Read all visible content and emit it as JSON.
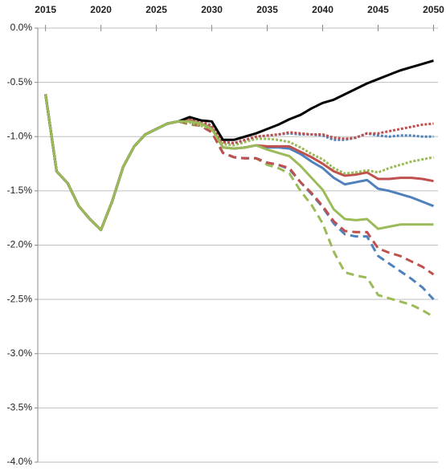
{
  "chart_data": {
    "type": "line",
    "x": [
      2015,
      2016,
      2017,
      2018,
      2019,
      2020,
      2021,
      2022,
      2023,
      2024,
      2025,
      2026,
      2027,
      2028,
      2029,
      2030,
      2031,
      2032,
      2033,
      2034,
      2035,
      2036,
      2037,
      2038,
      2039,
      2040,
      2041,
      2042,
      2043,
      2044,
      2045,
      2046,
      2047,
      2048,
      2049,
      2050
    ],
    "xlim": [
      2014.3,
      2050.4
    ],
    "xticks": [
      2015,
      2020,
      2025,
      2030,
      2035,
      2040,
      2045,
      2050
    ],
    "ylim": [
      -4,
      0
    ],
    "yticks": [
      {
        "value": 0,
        "label": "0.0%"
      },
      {
        "value": -0.5,
        "label": "-0.5%"
      },
      {
        "value": -1,
        "label": "-1.0%"
      },
      {
        "value": -1.5,
        "label": "-1.5%"
      },
      {
        "value": -2,
        "label": "-2.0%"
      },
      {
        "value": -2.5,
        "label": "-2.5%"
      },
      {
        "value": -3,
        "label": "-3.0%"
      },
      {
        "value": -3.5,
        "label": "-3.5%"
      },
      {
        "value": -4,
        "label": "-4.0%"
      }
    ],
    "grid": true,
    "series": [
      {
        "color": "#9bbb59",
        "style": "dashed",
        "values": [
          -0.61,
          -1.32,
          -1.43,
          -1.64,
          -1.76,
          -1.86,
          -1.6,
          -1.28,
          -1.09,
          -0.98,
          -0.93,
          -0.88,
          -0.86,
          -0.89,
          -0.9,
          -0.96,
          -1.15,
          -1.19,
          -1.2,
          -1.2,
          -1.26,
          -1.29,
          -1.34,
          -1.5,
          -1.63,
          -1.8,
          -2.06,
          -2.25,
          -2.28,
          -2.3,
          -2.46,
          -2.49,
          -2.52,
          -2.55,
          -2.6,
          -2.66
        ]
      },
      {
        "color": "#4f81bd",
        "style": "dashed",
        "values": [
          -0.61,
          -1.32,
          -1.43,
          -1.64,
          -1.76,
          -1.86,
          -1.6,
          -1.28,
          -1.09,
          -0.98,
          -0.93,
          -0.88,
          -0.86,
          -0.88,
          -0.9,
          -0.96,
          -1.15,
          -1.19,
          -1.2,
          -1.2,
          -1.24,
          -1.26,
          -1.3,
          -1.42,
          -1.53,
          -1.65,
          -1.8,
          -1.9,
          -1.92,
          -1.92,
          -2.1,
          -2.17,
          -2.24,
          -2.31,
          -2.39,
          -2.5
        ]
      },
      {
        "color": "#c0504d",
        "style": "dashed",
        "values": [
          -0.61,
          -1.32,
          -1.43,
          -1.64,
          -1.76,
          -1.86,
          -1.6,
          -1.28,
          -1.09,
          -0.98,
          -0.93,
          -0.88,
          -0.86,
          -0.88,
          -0.9,
          -0.96,
          -1.15,
          -1.19,
          -1.2,
          -1.2,
          -1.24,
          -1.26,
          -1.29,
          -1.42,
          -1.52,
          -1.64,
          -1.78,
          -1.87,
          -1.88,
          -1.88,
          -2.03,
          -2.07,
          -2.1,
          -2.15,
          -2.2,
          -2.27
        ]
      },
      {
        "color": "#4f81bd",
        "style": "solid",
        "values": [
          -0.61,
          -1.32,
          -1.43,
          -1.64,
          -1.76,
          -1.86,
          -1.6,
          -1.28,
          -1.09,
          -0.98,
          -0.93,
          -0.88,
          -0.86,
          -0.85,
          -0.88,
          -0.92,
          -1.1,
          -1.11,
          -1.1,
          -1.08,
          -1.1,
          -1.1,
          -1.11,
          -1.16,
          -1.23,
          -1.29,
          -1.38,
          -1.44,
          -1.42,
          -1.4,
          -1.48,
          -1.5,
          -1.53,
          -1.56,
          -1.6,
          -1.64
        ]
      },
      {
        "color": "#c0504d",
        "style": "solid",
        "values": [
          -0.61,
          -1.32,
          -1.43,
          -1.64,
          -1.76,
          -1.86,
          -1.6,
          -1.28,
          -1.09,
          -0.98,
          -0.93,
          -0.88,
          -0.86,
          -0.85,
          -0.88,
          -0.92,
          -1.1,
          -1.11,
          -1.1,
          -1.08,
          -1.09,
          -1.09,
          -1.09,
          -1.14,
          -1.19,
          -1.25,
          -1.32,
          -1.36,
          -1.35,
          -1.33,
          -1.39,
          -1.39,
          -1.38,
          -1.38,
          -1.39,
          -1.41
        ]
      },
      {
        "color": "#9bbb59",
        "style": "dotted",
        "values": [
          -0.61,
          -1.32,
          -1.43,
          -1.64,
          -1.76,
          -1.86,
          -1.6,
          -1.28,
          -1.09,
          -0.98,
          -0.93,
          -0.88,
          -0.86,
          -0.87,
          -0.9,
          -0.93,
          -1.07,
          -1.08,
          -1.05,
          -1.02,
          -1.02,
          -1.03,
          -1.05,
          -1.1,
          -1.16,
          -1.21,
          -1.29,
          -1.34,
          -1.33,
          -1.31,
          -1.33,
          -1.29,
          -1.26,
          -1.23,
          -1.21,
          -1.19
        ]
      },
      {
        "color": "#4f81bd",
        "style": "dotted",
        "values": [
          -0.61,
          -1.32,
          -1.43,
          -1.64,
          -1.76,
          -1.86,
          -1.6,
          -1.28,
          -1.09,
          -0.98,
          -0.93,
          -0.88,
          -0.86,
          -0.84,
          -0.86,
          -0.9,
          -1.05,
          -1.06,
          -1.03,
          -1.0,
          -0.99,
          -0.98,
          -0.97,
          -0.98,
          -0.98,
          -0.99,
          -1.03,
          -1.03,
          -1.01,
          -0.97,
          -0.99,
          -1.0,
          -0.99,
          -0.99,
          -1.0,
          -1.0
        ]
      },
      {
        "color": "#c0504d",
        "style": "dotted",
        "values": [
          -0.61,
          -1.32,
          -1.43,
          -1.64,
          -1.76,
          -1.86,
          -1.6,
          -1.28,
          -1.09,
          -0.98,
          -0.93,
          -0.88,
          -0.86,
          -0.84,
          -0.86,
          -0.9,
          -1.05,
          -1.06,
          -1.03,
          -1.0,
          -0.99,
          -0.98,
          -0.96,
          -0.97,
          -0.98,
          -0.98,
          -1.01,
          -1.02,
          -1.01,
          -0.97,
          -0.97,
          -0.95,
          -0.93,
          -0.91,
          -0.89,
          -0.88
        ]
      },
      {
        "color": "#000000",
        "style": "solid",
        "values": [
          -0.61,
          -1.32,
          -1.43,
          -1.64,
          -1.76,
          -1.86,
          -1.6,
          -1.28,
          -1.09,
          -0.98,
          -0.93,
          -0.88,
          -0.86,
          -0.82,
          -0.85,
          -0.86,
          -1.03,
          -1.03,
          -1.0,
          -0.97,
          -0.93,
          -0.89,
          -0.84,
          -0.8,
          -0.74,
          -0.69,
          -0.66,
          -0.61,
          -0.56,
          -0.51,
          -0.47,
          -0.43,
          -0.39,
          -0.36,
          -0.33,
          -0.3
        ]
      },
      {
        "color": "#9bbb59",
        "style": "solid",
        "values": [
          -0.61,
          -1.32,
          -1.43,
          -1.64,
          -1.76,
          -1.86,
          -1.6,
          -1.28,
          -1.09,
          -0.98,
          -0.93,
          -0.88,
          -0.86,
          -0.86,
          -0.88,
          -0.93,
          -1.1,
          -1.11,
          -1.1,
          -1.08,
          -1.12,
          -1.15,
          -1.18,
          -1.27,
          -1.38,
          -1.49,
          -1.67,
          -1.76,
          -1.77,
          -1.76,
          -1.85,
          -1.83,
          -1.81,
          -1.81,
          -1.81,
          -1.81
        ]
      }
    ]
  }
}
